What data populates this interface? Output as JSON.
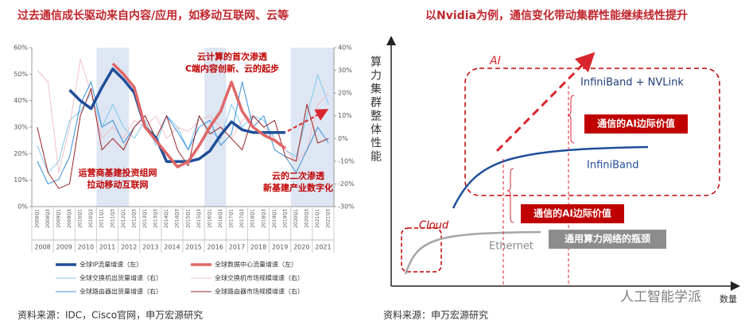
{
  "chart_data": {
    "type": "line",
    "title": "过去通信成长驱动来自内容/应用，如移动互联网、云等",
    "categories": [
      "2008Q1",
      "2008Q3",
      "2009Q1",
      "2009Q3",
      "2010Q1",
      "2010Q3",
      "2011Q1",
      "2011Q3",
      "2012Q1",
      "2012Q3",
      "2013Q1",
      "2013Q3",
      "2014Q1",
      "2014Q3",
      "2015Q1",
      "2015Q3",
      "2016Q1",
      "2016Q3",
      "2017Q1",
      "2017Q3",
      "2018Q1",
      "2018Q3",
      "2019Q1",
      "2019Q3",
      "2020Q1",
      "2020Q3",
      "2021Q1",
      "2021Q3"
    ],
    "years": [
      "2008",
      "2009",
      "2010",
      "2011",
      "2012",
      "2013",
      "2014",
      "2015",
      "2016",
      "2017",
      "2018",
      "2019",
      "2020",
      "2021"
    ],
    "shaded_periods": [
      [
        "2011Q1",
        "2012Q1"
      ],
      [
        "2016Q1",
        "2016Q3"
      ],
      [
        "2020Q1",
        "2021Q3"
      ]
    ],
    "ylim": [
      0,
      60
    ],
    "yticks": [
      {
        "value": 0,
        "label": "0%"
      },
      {
        "value": 10,
        "label": "10%"
      },
      {
        "value": 20,
        "label": "20%"
      },
      {
        "value": 30,
        "label": "30%"
      },
      {
        "value": 40,
        "label": "40%"
      },
      {
        "value": 50,
        "label": "50%"
      },
      {
        "value": 60,
        "label": "60%"
      }
    ],
    "y2lim": [
      -30,
      40
    ],
    "y2ticks": [
      {
        "value": -30,
        "label": "-30%"
      },
      {
        "value": -20,
        "label": "-20%"
      },
      {
        "value": -10,
        "label": "-10%"
      },
      {
        "value": 0,
        "label": "0%"
      },
      {
        "value": 10,
        "label": "10%"
      },
      {
        "value": 20,
        "label": "20%"
      },
      {
        "value": 30,
        "label": "30%"
      },
      {
        "value": 40,
        "label": "40%"
      }
    ],
    "series": [
      {
        "name": "全球IP流量增速（左）",
        "color": "#1f4e9a",
        "width": 3.5,
        "values": [
          null,
          null,
          null,
          44,
          40,
          37,
          45,
          52,
          48,
          43,
          30,
          26,
          17,
          17,
          17,
          18,
          21,
          27,
          32,
          29,
          28,
          28,
          28,
          28,
          null,
          null,
          null,
          null
        ]
      },
      {
        "name": "全球数据中心流量增速（左）",
        "color": "#e06666",
        "width": 3.5,
        "values": [
          null,
          null,
          null,
          null,
          null,
          null,
          null,
          54,
          50,
          45,
          30,
          25,
          20,
          15,
          17,
          23,
          30,
          36,
          47,
          36,
          30,
          27,
          25,
          22,
          null,
          null,
          null,
          null
        ]
      },
      {
        "name": "全球交换机出货量增速（右）",
        "color": "#7ec8f0",
        "width": 1,
        "axis": "y2",
        "values": [
          -3,
          -15,
          -10,
          8,
          12,
          20,
          5,
          15,
          5,
          0,
          8,
          -3,
          10,
          5,
          -5,
          10,
          3,
          0,
          15,
          5,
          10,
          8,
          0,
          -5,
          -8,
          10,
          28,
          15
        ]
      },
      {
        "name": "全球交换机市场规模增速（右）",
        "color": "#f2bfc6",
        "width": 1,
        "axis": "y2",
        "values": [
          30,
          25,
          -15,
          5,
          35,
          20,
          0,
          5,
          0,
          8,
          5,
          10,
          0,
          5,
          3,
          8,
          10,
          5,
          0,
          8,
          10,
          5,
          0,
          -5,
          -10,
          -5,
          15,
          20
        ]
      },
      {
        "name": "全球路由器出货量增速（右）",
        "color": "#3a8fd9",
        "width": 1,
        "axis": "y2",
        "values": [
          -10,
          -20,
          -18,
          -8,
          15,
          25,
          5,
          8,
          -2,
          5,
          10,
          0,
          10,
          3,
          -5,
          5,
          8,
          -3,
          2,
          25,
          5,
          10,
          -5,
          -8,
          -15,
          -5,
          5,
          -2
        ]
      },
      {
        "name": "全球路由器市场规模增速（右）",
        "color": "#9b2323",
        "width": 1,
        "axis": "y2",
        "values": [
          5,
          -15,
          -22,
          -20,
          10,
          22,
          -5,
          0,
          -5,
          5,
          10,
          0,
          10,
          -5,
          -12,
          10,
          2,
          5,
          0,
          -5,
          10,
          5,
          8,
          -8,
          -10,
          15,
          -2,
          0
        ]
      }
    ],
    "annotations": [
      [
        "云计算的首次渗透",
        "C端内容创新、云的起步"
      ],
      [
        "运营商基建投资组网",
        "拉动移动互联网"
      ],
      [
        "云的二次渗透",
        "新基建产业数字化"
      ]
    ],
    "source": "资料来源：IDC，Cisco官网，申万宏源研究"
  },
  "diagram": {
    "title": "以Nvidia为例，通信变化带动集群性能继续线性提升",
    "y_label": "算力集群整体性能",
    "x_label": "数量",
    "ai": "AI",
    "ib_nvlink": "InfiniBand + NVLink",
    "ai_value_top": "通信的AI边际价值",
    "infiniband": "InfiniBand",
    "ai_value_bottom": "通信的AI边际价值",
    "cloud": "Cloud",
    "ethernet": "Ethernet",
    "bottleneck": "通用算力网络的瓶颈",
    "source": "资料来源：申万宏源研究",
    "watermark": "人工智能学派"
  }
}
